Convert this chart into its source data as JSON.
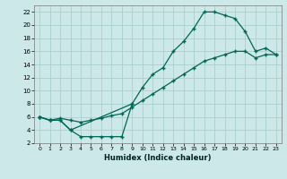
{
  "xlabel": "Humidex (Indice chaleur)",
  "bg_color": "#cce8e8",
  "grid_color": "#aacfcf",
  "line_color": "#006655",
  "xlim": [
    -0.5,
    23.5
  ],
  "ylim": [
    2,
    23
  ],
  "xticks": [
    0,
    1,
    2,
    3,
    4,
    5,
    6,
    7,
    8,
    9,
    10,
    11,
    12,
    13,
    14,
    15,
    16,
    17,
    18,
    19,
    20,
    21,
    22,
    23
  ],
  "yticks": [
    2,
    4,
    6,
    8,
    10,
    12,
    14,
    16,
    18,
    20,
    22
  ],
  "curve1_x": [
    0,
    1,
    2,
    3,
    9,
    10,
    11,
    12,
    13,
    14,
    15,
    16,
    17,
    18,
    19,
    20,
    21,
    22,
    23
  ],
  "curve1_y": [
    6,
    5.5,
    5.5,
    4,
    8,
    10.5,
    12.5,
    13.5,
    16,
    17.5,
    19.5,
    22,
    22,
    21.5,
    21,
    19,
    16,
    16.5,
    15.5
  ],
  "curve2_x": [
    0,
    1,
    2,
    3,
    4,
    5,
    6,
    7,
    8,
    9
  ],
  "curve2_y": [
    6,
    5.5,
    5.5,
    4,
    3,
    3,
    3,
    3,
    3,
    8
  ],
  "curve3_x": [
    0,
    1,
    2,
    3,
    4,
    5,
    6,
    7,
    8,
    9,
    10,
    11,
    12,
    13,
    14,
    15,
    16,
    17,
    18,
    19,
    20,
    21,
    22,
    23
  ],
  "curve3_y": [
    6,
    5.5,
    5.8,
    5.5,
    5.2,
    5.5,
    5.8,
    6.2,
    6.5,
    7.5,
    8.5,
    9.5,
    10.5,
    11.5,
    12.5,
    13.5,
    14.5,
    15.0,
    15.5,
    16.0,
    16.0,
    15.0,
    15.5,
    15.5
  ]
}
